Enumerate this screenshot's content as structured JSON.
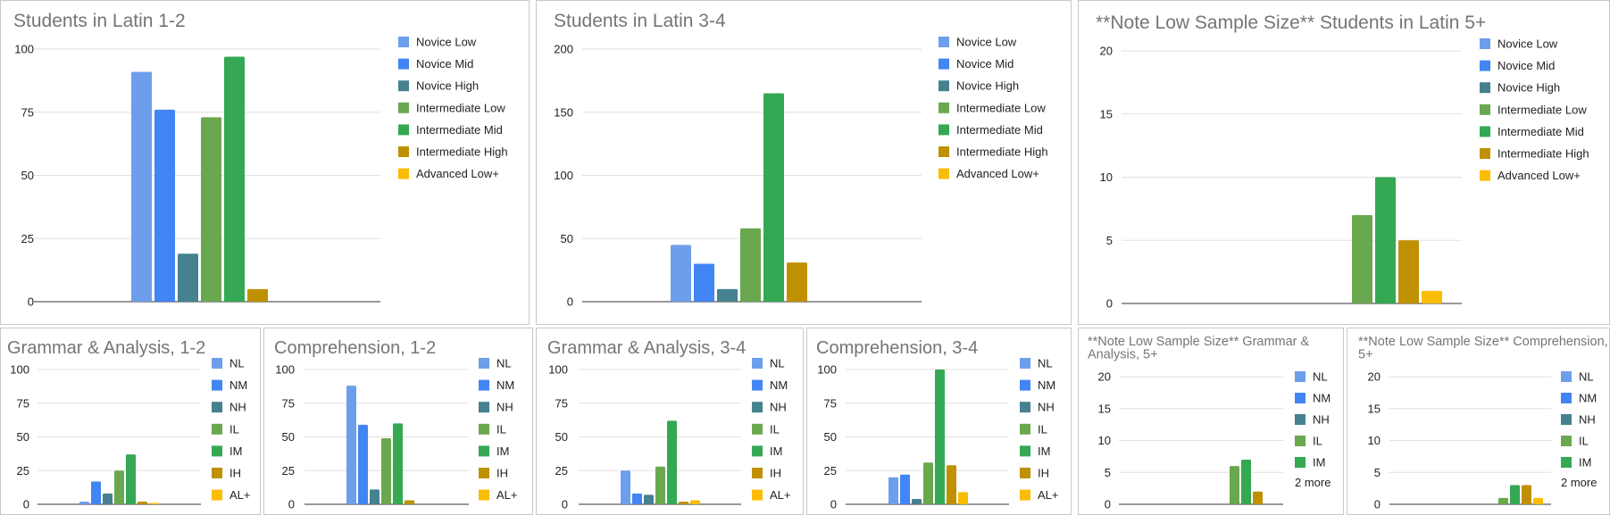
{
  "legend_full": [
    "Novice Low",
    "Novice Mid",
    "Novice High",
    "Intermediate Low",
    "Intermediate Mid",
    "Intermediate High",
    "Advanced Low+"
  ],
  "legend_abbrev": [
    "NL",
    "NM",
    "NH",
    "IL",
    "IM",
    "IH",
    "AL+"
  ],
  "colors": [
    "#6d9eeb",
    "#4285f4",
    "#45818e",
    "#6aa84f",
    "#34a853",
    "#bf9000",
    "#fbbc04"
  ],
  "more_label": "2 more",
  "chart_data": [
    {
      "type": "bar",
      "title": "Students in Latin 1-2",
      "ylim": [
        0,
        100
      ],
      "yticks": [
        0,
        25,
        50,
        75,
        100
      ],
      "series_values": [
        91,
        76,
        19,
        73,
        97,
        5,
        0
      ],
      "legend": "full"
    },
    {
      "type": "bar",
      "title": "Students in Latin 3-4",
      "ylim": [
        0,
        200
      ],
      "yticks": [
        0,
        50,
        100,
        150,
        200
      ],
      "series_values": [
        45,
        30,
        10,
        58,
        165,
        31,
        0
      ],
      "legend": "full"
    },
    {
      "type": "bar",
      "title": "**Note Low Sample Size** Students in Latin 5+",
      "ylim": [
        0,
        20
      ],
      "yticks": [
        0,
        5,
        10,
        15,
        20
      ],
      "series_values": [
        0,
        0,
        0,
        7,
        10,
        5,
        1
      ],
      "legend": "full"
    },
    {
      "type": "bar",
      "title": "Grammar & Analysis, 1-2",
      "ylim": [
        0,
        100
      ],
      "yticks": [
        0,
        25,
        50,
        75,
        100
      ],
      "series_values": [
        2,
        17,
        8,
        25,
        37,
        2,
        1
      ],
      "legend": "abbrev"
    },
    {
      "type": "bar",
      "title": "Comprehension, 1-2",
      "ylim": [
        0,
        100
      ],
      "yticks": [
        0,
        25,
        50,
        75,
        100
      ],
      "series_values": [
        88,
        59,
        11,
        49,
        60,
        3,
        0
      ],
      "legend": "abbrev"
    },
    {
      "type": "bar",
      "title": "Grammar & Analysis, 3-4",
      "ylim": [
        0,
        100
      ],
      "yticks": [
        0,
        25,
        50,
        75,
        100
      ],
      "series_values": [
        25,
        8,
        7,
        28,
        62,
        2,
        3
      ],
      "legend": "abbrev"
    },
    {
      "type": "bar",
      "title": "Comprehension, 3-4",
      "ylim": [
        0,
        100
      ],
      "yticks": [
        0,
        25,
        50,
        75,
        100
      ],
      "series_values": [
        20,
        22,
        4,
        31,
        100,
        29,
        9
      ],
      "legend": "abbrev"
    },
    {
      "type": "bar",
      "title": "**Note Low Sample Size** Grammar & Analysis, 5+",
      "ylim": [
        0,
        20
      ],
      "yticks": [
        0,
        5,
        10,
        15,
        20
      ],
      "series_values": [
        0,
        0,
        0,
        6,
        7,
        2,
        0
      ],
      "legend": "abbrev5"
    },
    {
      "type": "bar",
      "title": "**Note Low Sample Size** Comprehension, 5+",
      "ylim": [
        0,
        20
      ],
      "yticks": [
        0,
        5,
        10,
        15,
        20
      ],
      "series_values": [
        0,
        0,
        0,
        1,
        3,
        3,
        1
      ],
      "legend": "abbrev5"
    }
  ]
}
